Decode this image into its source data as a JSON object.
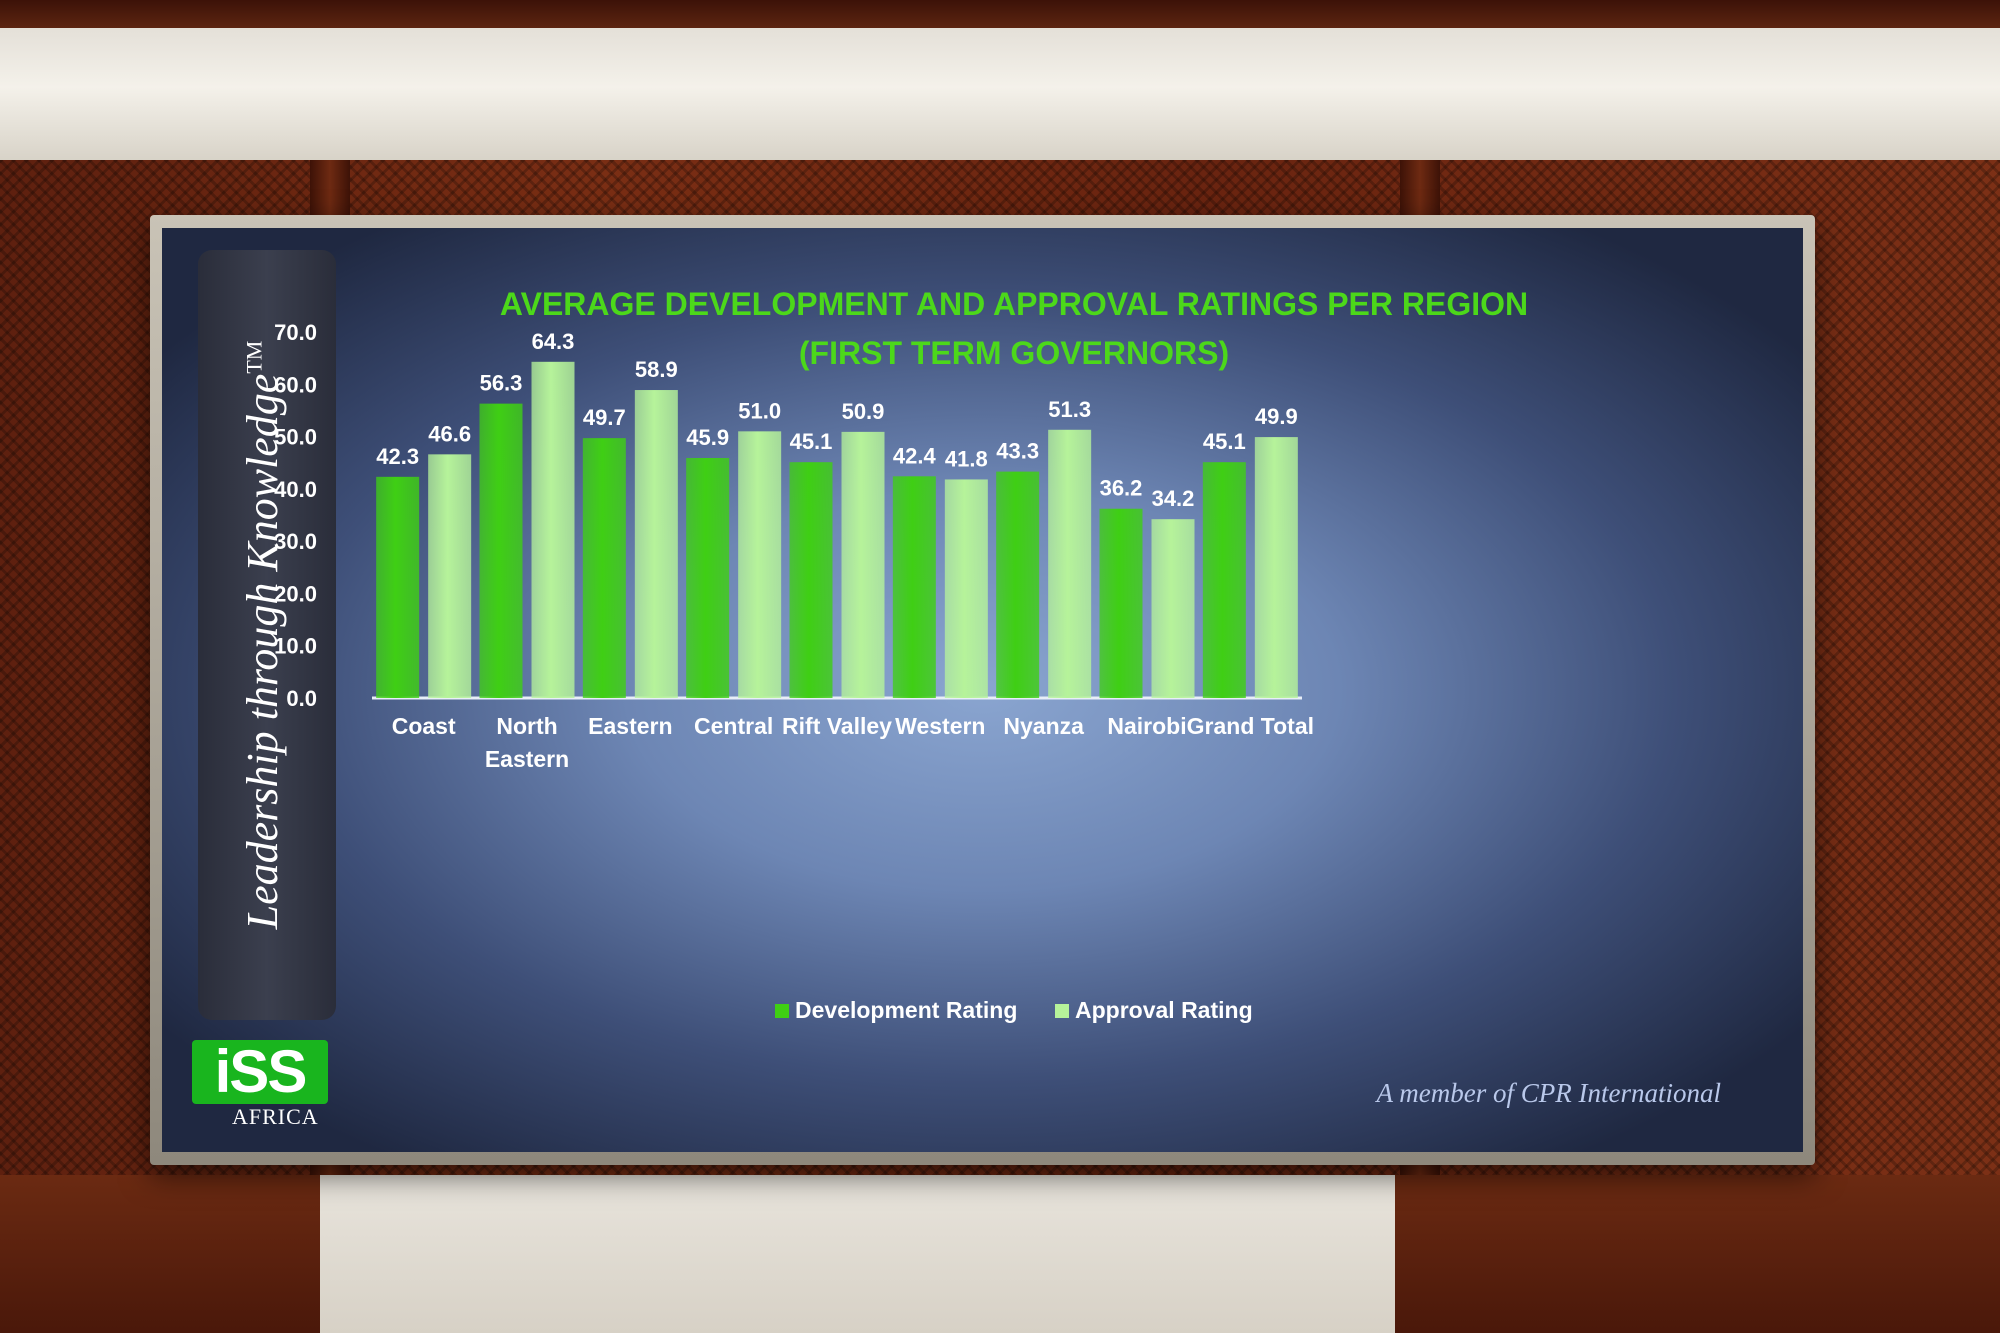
{
  "slide": {
    "tagline": "Leadership through Knowledge",
    "trademark": "TM",
    "logo_text": "iSS",
    "logo_subtext": "AFRICA",
    "footer": "A member of CPR International"
  },
  "colors": {
    "title": "#4cd81a",
    "development": "#3fcf14",
    "approval": "#b6f39a",
    "text": "#ffffff"
  },
  "chart_data": {
    "type": "bar",
    "title": "AVERAGE DEVELOPMENT AND APPROVAL RATINGS PER REGION",
    "subtitle": "(FIRST TERM GOVERNORS)",
    "categories": [
      "Coast",
      "North Eastern",
      "Eastern",
      "Central",
      "Rift Valley",
      "Western",
      "Nyanza",
      "Nairobi",
      "Grand Total"
    ],
    "series": [
      {
        "name": "Development Rating",
        "values": [
          42.3,
          56.3,
          49.7,
          45.9,
          45.1,
          42.4,
          43.3,
          36.2,
          45.1
        ]
      },
      {
        "name": "Approval Rating",
        "values": [
          46.6,
          64.3,
          58.9,
          51.0,
          50.9,
          41.8,
          51.3,
          34.2,
          49.9
        ]
      }
    ],
    "yticks": [
      "0.0",
      "10.0",
      "20.0",
      "30.0",
      "40.0",
      "50.0",
      "60.0",
      "70.0"
    ],
    "ylim": [
      0,
      70
    ],
    "legend_position": "bottom",
    "grid": false
  }
}
